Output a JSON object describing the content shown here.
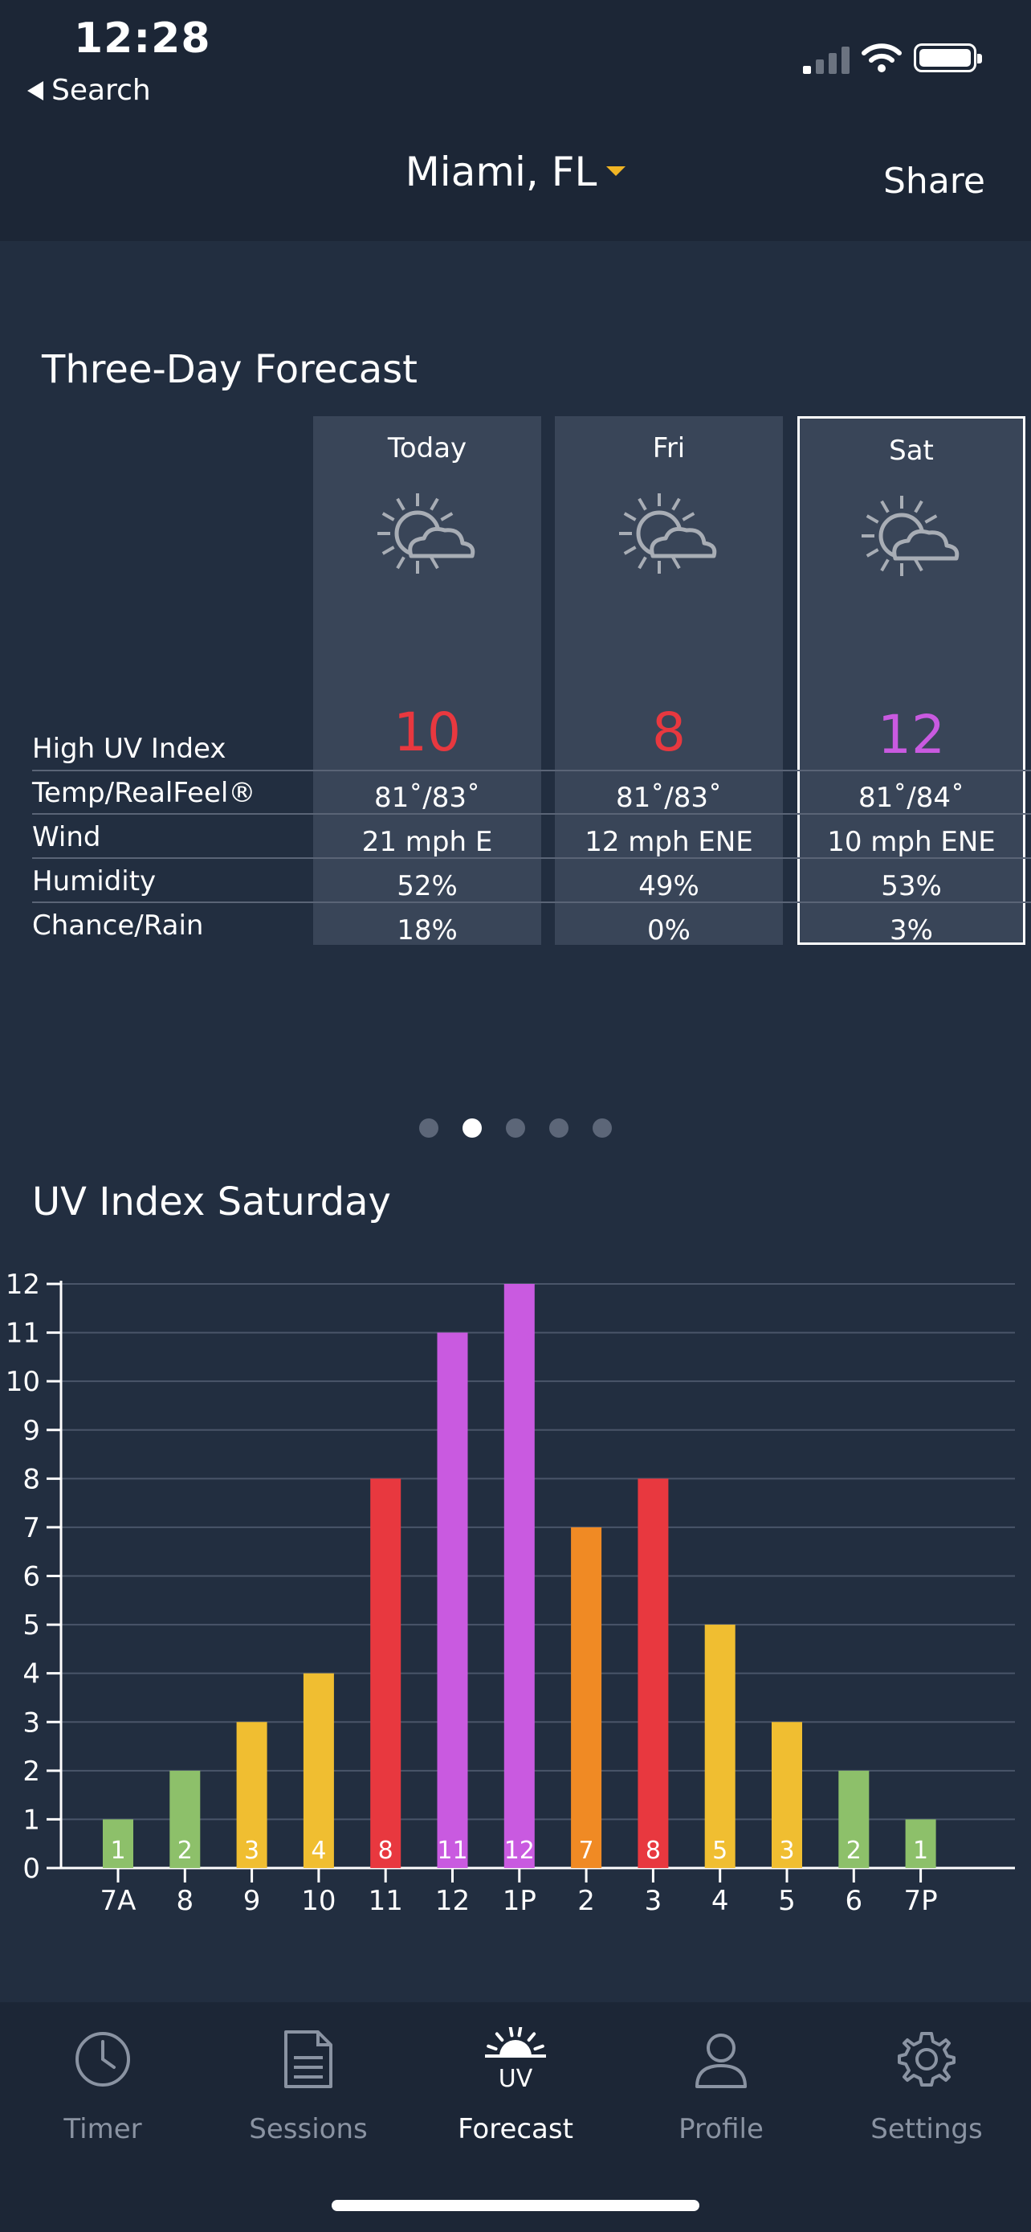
{
  "status": {
    "time": "12:28",
    "back_label": "Search"
  },
  "header": {
    "location": "Miami, FL",
    "share_label": "Share"
  },
  "forecast": {
    "title": "Three-Day Forecast",
    "row_labels": [
      "High UV Index",
      "Temp/RealFeel®",
      "Wind",
      "Humidity",
      "Chance/Rain"
    ],
    "days": [
      {
        "name": "Today",
        "uv": "10",
        "uv_color": "#e8383f",
        "temp": "81˚/83˚",
        "wind": "21 mph E",
        "humidity": "52%",
        "rain": "18%"
      },
      {
        "name": "Fri",
        "uv": "8",
        "uv_color": "#e8383f",
        "temp": "81˚/83˚",
        "wind": "12 mph ENE",
        "humidity": "49%",
        "rain": "0%"
      },
      {
        "name": "Sat",
        "uv": "12",
        "uv_color": "#c95ae0",
        "temp": "81˚/84˚",
        "wind": "10 mph ENE",
        "humidity": "53%",
        "rain": "3%"
      }
    ],
    "selected_day": "Sat",
    "icon": "partly-cloudy-sun-icon"
  },
  "pager": {
    "count": 5,
    "active": 1
  },
  "uv_section": {
    "title": "UV Index Saturday"
  },
  "chart_data": {
    "type": "bar",
    "categories": [
      "7A",
      "8",
      "9",
      "10",
      "11",
      "12",
      "1P",
      "2",
      "3",
      "4",
      "5",
      "6",
      "7P"
    ],
    "values": [
      1,
      2,
      3,
      4,
      8,
      11,
      12,
      7,
      8,
      5,
      3,
      2,
      1
    ],
    "bar_colors": [
      "#8dc06a",
      "#8dc06a",
      "#f0be31",
      "#f0be31",
      "#e8383f",
      "#c95ae0",
      "#c95ae0",
      "#f08a24",
      "#e8383f",
      "#f0be31",
      "#f0be31",
      "#8dc06a",
      "#8dc06a"
    ],
    "ylim": [
      0,
      12
    ],
    "yticks": [
      "0",
      "1",
      "2",
      "3",
      "4",
      "5",
      "6",
      "7",
      "8",
      "9",
      "10",
      "11",
      "12"
    ],
    "grid": true,
    "title": "",
    "xlabel": "",
    "ylabel": ""
  },
  "tabs": [
    {
      "label": "Timer",
      "icon": "clock-icon"
    },
    {
      "label": "Sessions",
      "icon": "document-icon"
    },
    {
      "label": "Forecast",
      "icon": "uv-sun-icon"
    },
    {
      "label": "Profile",
      "icon": "person-icon"
    },
    {
      "label": "Settings",
      "icon": "gear-icon"
    }
  ],
  "active_tab": "Forecast"
}
